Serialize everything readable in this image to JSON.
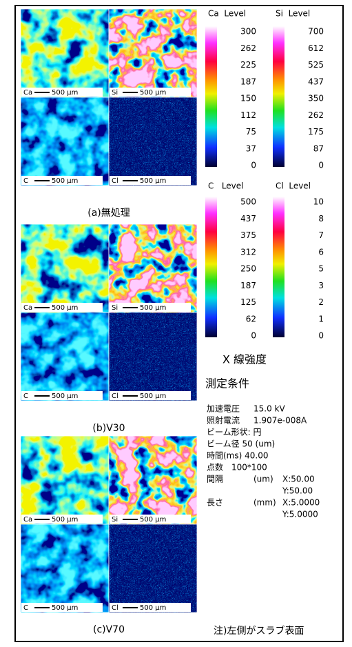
{
  "panels": [
    {
      "caption": "(a)無処理",
      "maps": [
        {
          "element": "Ca",
          "scale_bar": "500 μm"
        },
        {
          "element": "Si",
          "scale_bar": "500 μm"
        },
        {
          "element": "C",
          "scale_bar": "500 μm"
        },
        {
          "element": "Cl",
          "scale_bar": "500 μm"
        }
      ]
    },
    {
      "caption": "(b)V30",
      "maps": [
        {
          "element": "Ca",
          "scale_bar": "500 μm"
        },
        {
          "element": "Si",
          "scale_bar": "500 μm"
        },
        {
          "element": "C",
          "scale_bar": "500 μm"
        },
        {
          "element": "Cl",
          "scale_bar": "500 μm"
        }
      ]
    },
    {
      "caption": "(c)V70",
      "maps": [
        {
          "element": "Ca",
          "scale_bar": "500 μm"
        },
        {
          "element": "Si",
          "scale_bar": "500 μm"
        },
        {
          "element": "C",
          "scale_bar": "500 μm"
        },
        {
          "element": "Cl",
          "scale_bar": "500 μm"
        }
      ]
    }
  ],
  "color_scales": [
    {
      "title": "Ca  Level",
      "ticks": [
        "300",
        "262",
        "225",
        "187",
        "150",
        "112",
        "75",
        "37",
        "0"
      ]
    },
    {
      "title": "Si  Level",
      "ticks": [
        "700",
        "612",
        "525",
        "437",
        "350",
        "262",
        "175",
        "87",
        "0"
      ]
    },
    {
      "title": "C   Level",
      "ticks": [
        "500",
        "437",
        "375",
        "312",
        "250",
        "187",
        "125",
        "62",
        "0"
      ]
    },
    {
      "title": "Cl  Level",
      "ticks": [
        "10",
        "8",
        "7",
        "6",
        "5",
        "3",
        "2",
        "1",
        "0"
      ]
    }
  ],
  "scale_caption": "X 線強度",
  "conditions": {
    "title": "測定条件",
    "rows": [
      {
        "label": "加速電圧",
        "value": "15.0 kV"
      },
      {
        "label": "照射電流",
        "value": "1.907e-008A"
      },
      {
        "label": "ビーム形状: 円"
      },
      {
        "label": "ビーム径 50 (um)"
      },
      {
        "label": "時間(ms) 40.00"
      },
      {
        "label": "点数　100*100"
      },
      {
        "label": "間隔",
        "unit": "(um)",
        "value": "X:50.00"
      },
      {
        "value": "Y:50.00"
      },
      {
        "label": "長さ",
        "unit": "(mm)",
        "value": "X:5.0000"
      },
      {
        "value": "Y:5.0000"
      }
    ]
  },
  "note": "注)左側がスラブ表面"
}
